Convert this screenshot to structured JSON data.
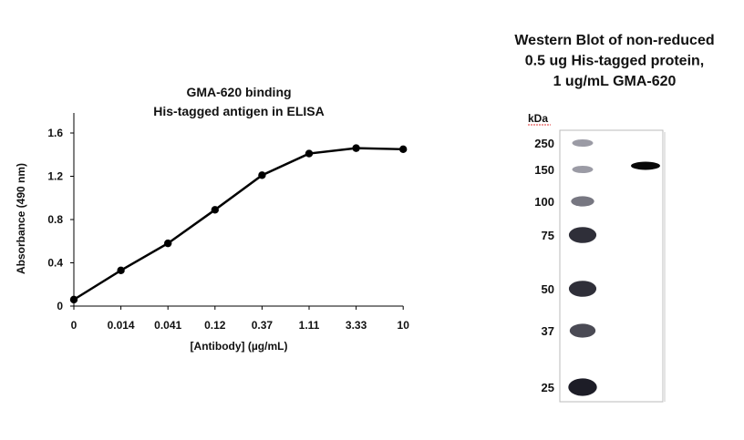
{
  "chart_data": [
    {
      "type": "line",
      "title": [
        "GMA-620 binding",
        "His-tagged antigen in ELISA"
      ],
      "xlabel": "[Antibody] (µg/mL)",
      "ylabel": "Absorbance (490 nm)",
      "categories": [
        "0",
        "0.014",
        "0.041",
        "0.12",
        "0.37",
        "1.11",
        "3.33",
        "10"
      ],
      "series": [
        {
          "name": "GMA-620",
          "values": [
            0.06,
            0.33,
            0.58,
            0.89,
            1.21,
            1.41,
            1.46,
            1.45
          ]
        }
      ],
      "yticks": [
        "0",
        "0.4",
        "0.8",
        "1.2",
        "1.6"
      ],
      "ytick_values": [
        0,
        0.4,
        0.8,
        1.2,
        1.6
      ],
      "ylim": [
        0,
        1.8
      ],
      "grid": false,
      "color": "#000000"
    },
    {
      "type": "blot",
      "title": [
        "Western Blot of non-reduced",
        "0.5 ug His-tagged protein,",
        "1 ug/mL GMA-620"
      ],
      "unit_label": "kDa",
      "ladder_markers": [
        "250",
        "150",
        "100",
        "75",
        "50",
        "37",
        "25"
      ],
      "ladder_intensity": [
        0.25,
        0.25,
        0.45,
        0.85,
        0.85,
        0.7,
        0.95
      ],
      "sample_band_kDa": 150
    }
  ]
}
